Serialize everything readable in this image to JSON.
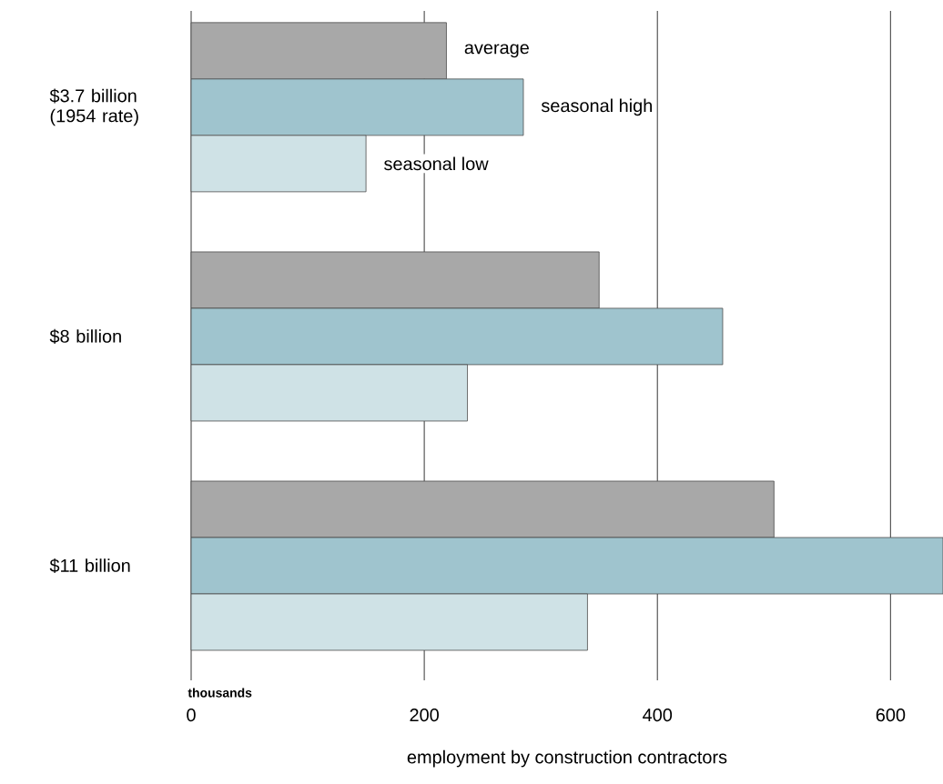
{
  "chart_data": {
    "type": "bar",
    "orientation": "horizontal",
    "xlabel": "employment by construction contractors",
    "categories": [
      "$3.7 billion (1954 rate)",
      "$8 billion",
      "$11 billion"
    ],
    "series": [
      {
        "name": "average",
        "color": "#a8a8a8",
        "values": [
          219,
          350,
          500
        ]
      },
      {
        "name": "seasonal high",
        "color": "#9fc4ce",
        "values": [
          285,
          456,
          645
        ]
      },
      {
        "name": "seasonal low",
        "color": "#cfe2e6",
        "values": [
          150,
          237,
          340
        ]
      }
    ],
    "xlim": [
      0,
      645
    ],
    "xticks": [
      0,
      200,
      400,
      600
    ],
    "grid": "x",
    "annotations": [
      "thousands"
    ]
  }
}
